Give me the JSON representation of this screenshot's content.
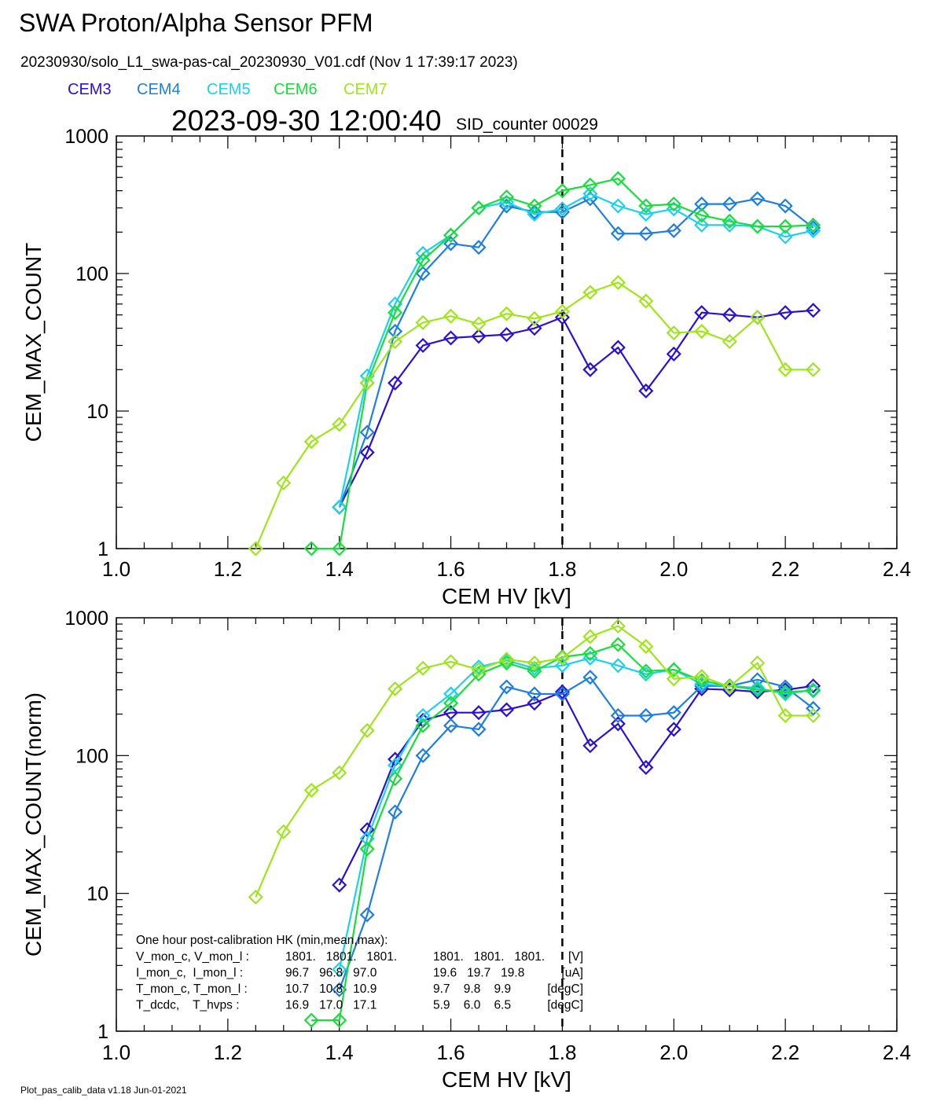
{
  "header": {
    "title": "SWA Proton/Alpha Sensor PFM",
    "file_line": "20230930/solo_L1_swa-pas-cal_20230930_V01.cdf  (Nov  1 17:39:17 2023)",
    "timestamp": "2023-09-30 12:00:40",
    "sid_counter": "SID_counter 00029"
  },
  "legend": [
    {
      "name": "CEM3",
      "color": "#2a10d6"
    },
    {
      "name": "CEM4",
      "color": "#1e7fe0"
    },
    {
      "name": "CEM5",
      "color": "#1ad1ee"
    },
    {
      "name": "CEM6",
      "color": "#18de3c"
    },
    {
      "name": "CEM7",
      "color": "#9ee61a"
    }
  ],
  "footer": "Plot_pas_calib_data v1.18 Jun-01-2021",
  "hk_box": {
    "title": "One hour post-calibration HK (min,mean,max):",
    "rows": [
      {
        "label": "V_mon_c, V_mon_l :",
        "a": "1801.   1801.   1801.",
        "b": "1801.   1801.   1801.",
        "unit": "[V]"
      },
      {
        "label": "I_mon_c,  I_mon_l :",
        "a": "96.7   96.8   97.0",
        "b": "19.6   19.7   19.8",
        "unit": "[uA]"
      },
      {
        "label": "T_mon_c, T_mon_l :",
        "a": "10.7   10.8   10.9",
        "b": "9.7    9.8    9.9",
        "unit": "[degC]"
      },
      {
        "label": "T_dcdc,    T_hvps :",
        "a": "16.9   17.0   17.1",
        "b": "5.9    6.0    6.5",
        "unit": "[degC]"
      }
    ]
  },
  "chart_data": [
    {
      "type": "line",
      "xlabel": "CEM HV [kV]",
      "ylabel": "CEM_MAX_COUNT",
      "xlim": [
        1.0,
        2.4
      ],
      "ylim": [
        1,
        1000
      ],
      "yscale": "log",
      "xticks": [
        "1.0",
        "1.2",
        "1.4",
        "1.6",
        "1.8",
        "2.0",
        "2.2",
        "2.4"
      ],
      "yticks": [
        "1",
        "10",
        "100",
        "1000"
      ],
      "marker": "diamond",
      "vline_x": 1.8,
      "series": [
        {
          "name": "CEM3",
          "x": [
            1.4,
            1.45,
            1.5,
            1.55,
            1.6,
            1.65,
            1.7,
            1.75,
            1.8,
            1.85,
            1.9,
            1.95,
            2.0,
            2.05,
            2.1,
            2.15,
            2.2,
            2.25
          ],
          "y": [
            2,
            5,
            16,
            30,
            34,
            35,
            36,
            40,
            48,
            20,
            29,
            14,
            26,
            52,
            50,
            48,
            52,
            54
          ]
        },
        {
          "name": "CEM4",
          "x": [
            1.4,
            1.45,
            1.5,
            1.55,
            1.6,
            1.65,
            1.7,
            1.75,
            1.8,
            1.85,
            1.9,
            1.95,
            2.0,
            2.05,
            2.1,
            2.15,
            2.2,
            2.25
          ],
          "y": [
            2,
            7,
            38,
            100,
            165,
            155,
            310,
            280,
            280,
            350,
            195,
            195,
            205,
            320,
            320,
            350,
            310,
            215
          ]
        },
        {
          "name": "CEM5",
          "x": [
            1.4,
            1.45,
            1.5,
            1.55,
            1.6,
            1.65,
            1.7,
            1.75,
            1.8,
            1.85,
            1.9,
            1.95,
            2.0,
            2.05,
            2.1,
            2.15,
            2.2,
            2.25
          ],
          "y": [
            2,
            18,
            60,
            140,
            190,
            300,
            330,
            270,
            295,
            380,
            310,
            270,
            295,
            225,
            225,
            220,
            185,
            205
          ]
        },
        {
          "name": "CEM6",
          "x": [
            1.35,
            1.4,
            1.45,
            1.5,
            1.55,
            1.6,
            1.65,
            1.7,
            1.75,
            1.8,
            1.85,
            1.9,
            1.95,
            2.0,
            2.05,
            2.1,
            2.15,
            2.2,
            2.25
          ],
          "y": [
            1,
            1,
            16,
            52,
            125,
            190,
            300,
            360,
            310,
            400,
            440,
            490,
            310,
            320,
            265,
            240,
            220,
            220,
            225
          ]
        },
        {
          "name": "CEM7",
          "x": [
            1.25,
            1.3,
            1.35,
            1.4,
            1.45,
            1.5,
            1.55,
            1.6,
            1.65,
            1.7,
            1.75,
            1.8,
            1.85,
            1.9,
            1.95,
            2.0,
            2.05,
            2.1,
            2.15,
            2.2,
            2.25
          ],
          "y": [
            1,
            3,
            6,
            8,
            16,
            32,
            44,
            49,
            43,
            51,
            47,
            53,
            73,
            86,
            63,
            37,
            38,
            32,
            48,
            20,
            20
          ]
        }
      ]
    },
    {
      "type": "line",
      "xlabel": "CEM HV [kV]",
      "ylabel": "CEM_MAX_COUNT(norm)",
      "xlim": [
        1.0,
        2.4
      ],
      "ylim": [
        1,
        1000
      ],
      "yscale": "log",
      "xticks": [
        "1.0",
        "1.2",
        "1.4",
        "1.6",
        "1.8",
        "2.0",
        "2.2",
        "2.4"
      ],
      "yticks": [
        "1",
        "10",
        "100",
        "1000"
      ],
      "marker": "diamond",
      "vline_x": 1.8,
      "series": [
        {
          "name": "CEM3",
          "x": [
            1.4,
            1.45,
            1.5,
            1.55,
            1.6,
            1.65,
            1.7,
            1.75,
            1.8,
            1.85,
            1.9,
            1.95,
            2.0,
            2.05,
            2.1,
            2.15,
            2.2,
            2.25
          ],
          "y": [
            11.5,
            29,
            94,
            180,
            205,
            205,
            215,
            240,
            290,
            118,
            170,
            82,
            155,
            305,
            300,
            290,
            300,
            320
          ]
        },
        {
          "name": "CEM4",
          "x": [
            1.4,
            1.45,
            1.5,
            1.55,
            1.6,
            1.65,
            1.7,
            1.75,
            1.8,
            1.85,
            1.9,
            1.95,
            2.0,
            2.05,
            2.1,
            2.15,
            2.2,
            2.25
          ],
          "y": [
            2,
            7,
            39,
            100,
            165,
            155,
            315,
            280,
            280,
            370,
            195,
            195,
            205,
            320,
            320,
            355,
            315,
            220
          ]
        },
        {
          "name": "CEM5",
          "x": [
            1.4,
            1.45,
            1.5,
            1.55,
            1.6,
            1.65,
            1.7,
            1.75,
            1.8,
            1.85,
            1.9,
            1.95,
            2.0,
            2.05,
            2.1,
            2.15,
            2.2,
            2.25
          ],
          "y": [
            2.8,
            25,
            85,
            195,
            280,
            440,
            490,
            430,
            450,
            510,
            450,
            390,
            420,
            330,
            320,
            310,
            280,
            300
          ]
        },
        {
          "name": "CEM6",
          "x": [
            1.35,
            1.4,
            1.45,
            1.5,
            1.55,
            1.6,
            1.65,
            1.7,
            1.75,
            1.8,
            1.85,
            1.9,
            1.95,
            2.0,
            2.05,
            2.1,
            2.15,
            2.2,
            2.25
          ],
          "y": [
            1.2,
            1.2,
            21,
            68,
            165,
            240,
            390,
            470,
            410,
            520,
            550,
            640,
            410,
            420,
            350,
            320,
            300,
            290,
            295
          ]
        },
        {
          "name": "CEM7",
          "x": [
            1.25,
            1.3,
            1.35,
            1.4,
            1.45,
            1.5,
            1.55,
            1.6,
            1.65,
            1.7,
            1.75,
            1.8,
            1.85,
            1.9,
            1.95,
            2.0,
            2.05,
            2.1,
            2.15,
            2.2,
            2.25
          ],
          "y": [
            9.4,
            28,
            56,
            75,
            152,
            305,
            430,
            480,
            420,
            500,
            470,
            510,
            730,
            870,
            620,
            360,
            375,
            315,
            470,
            195,
            195
          ]
        }
      ]
    }
  ]
}
